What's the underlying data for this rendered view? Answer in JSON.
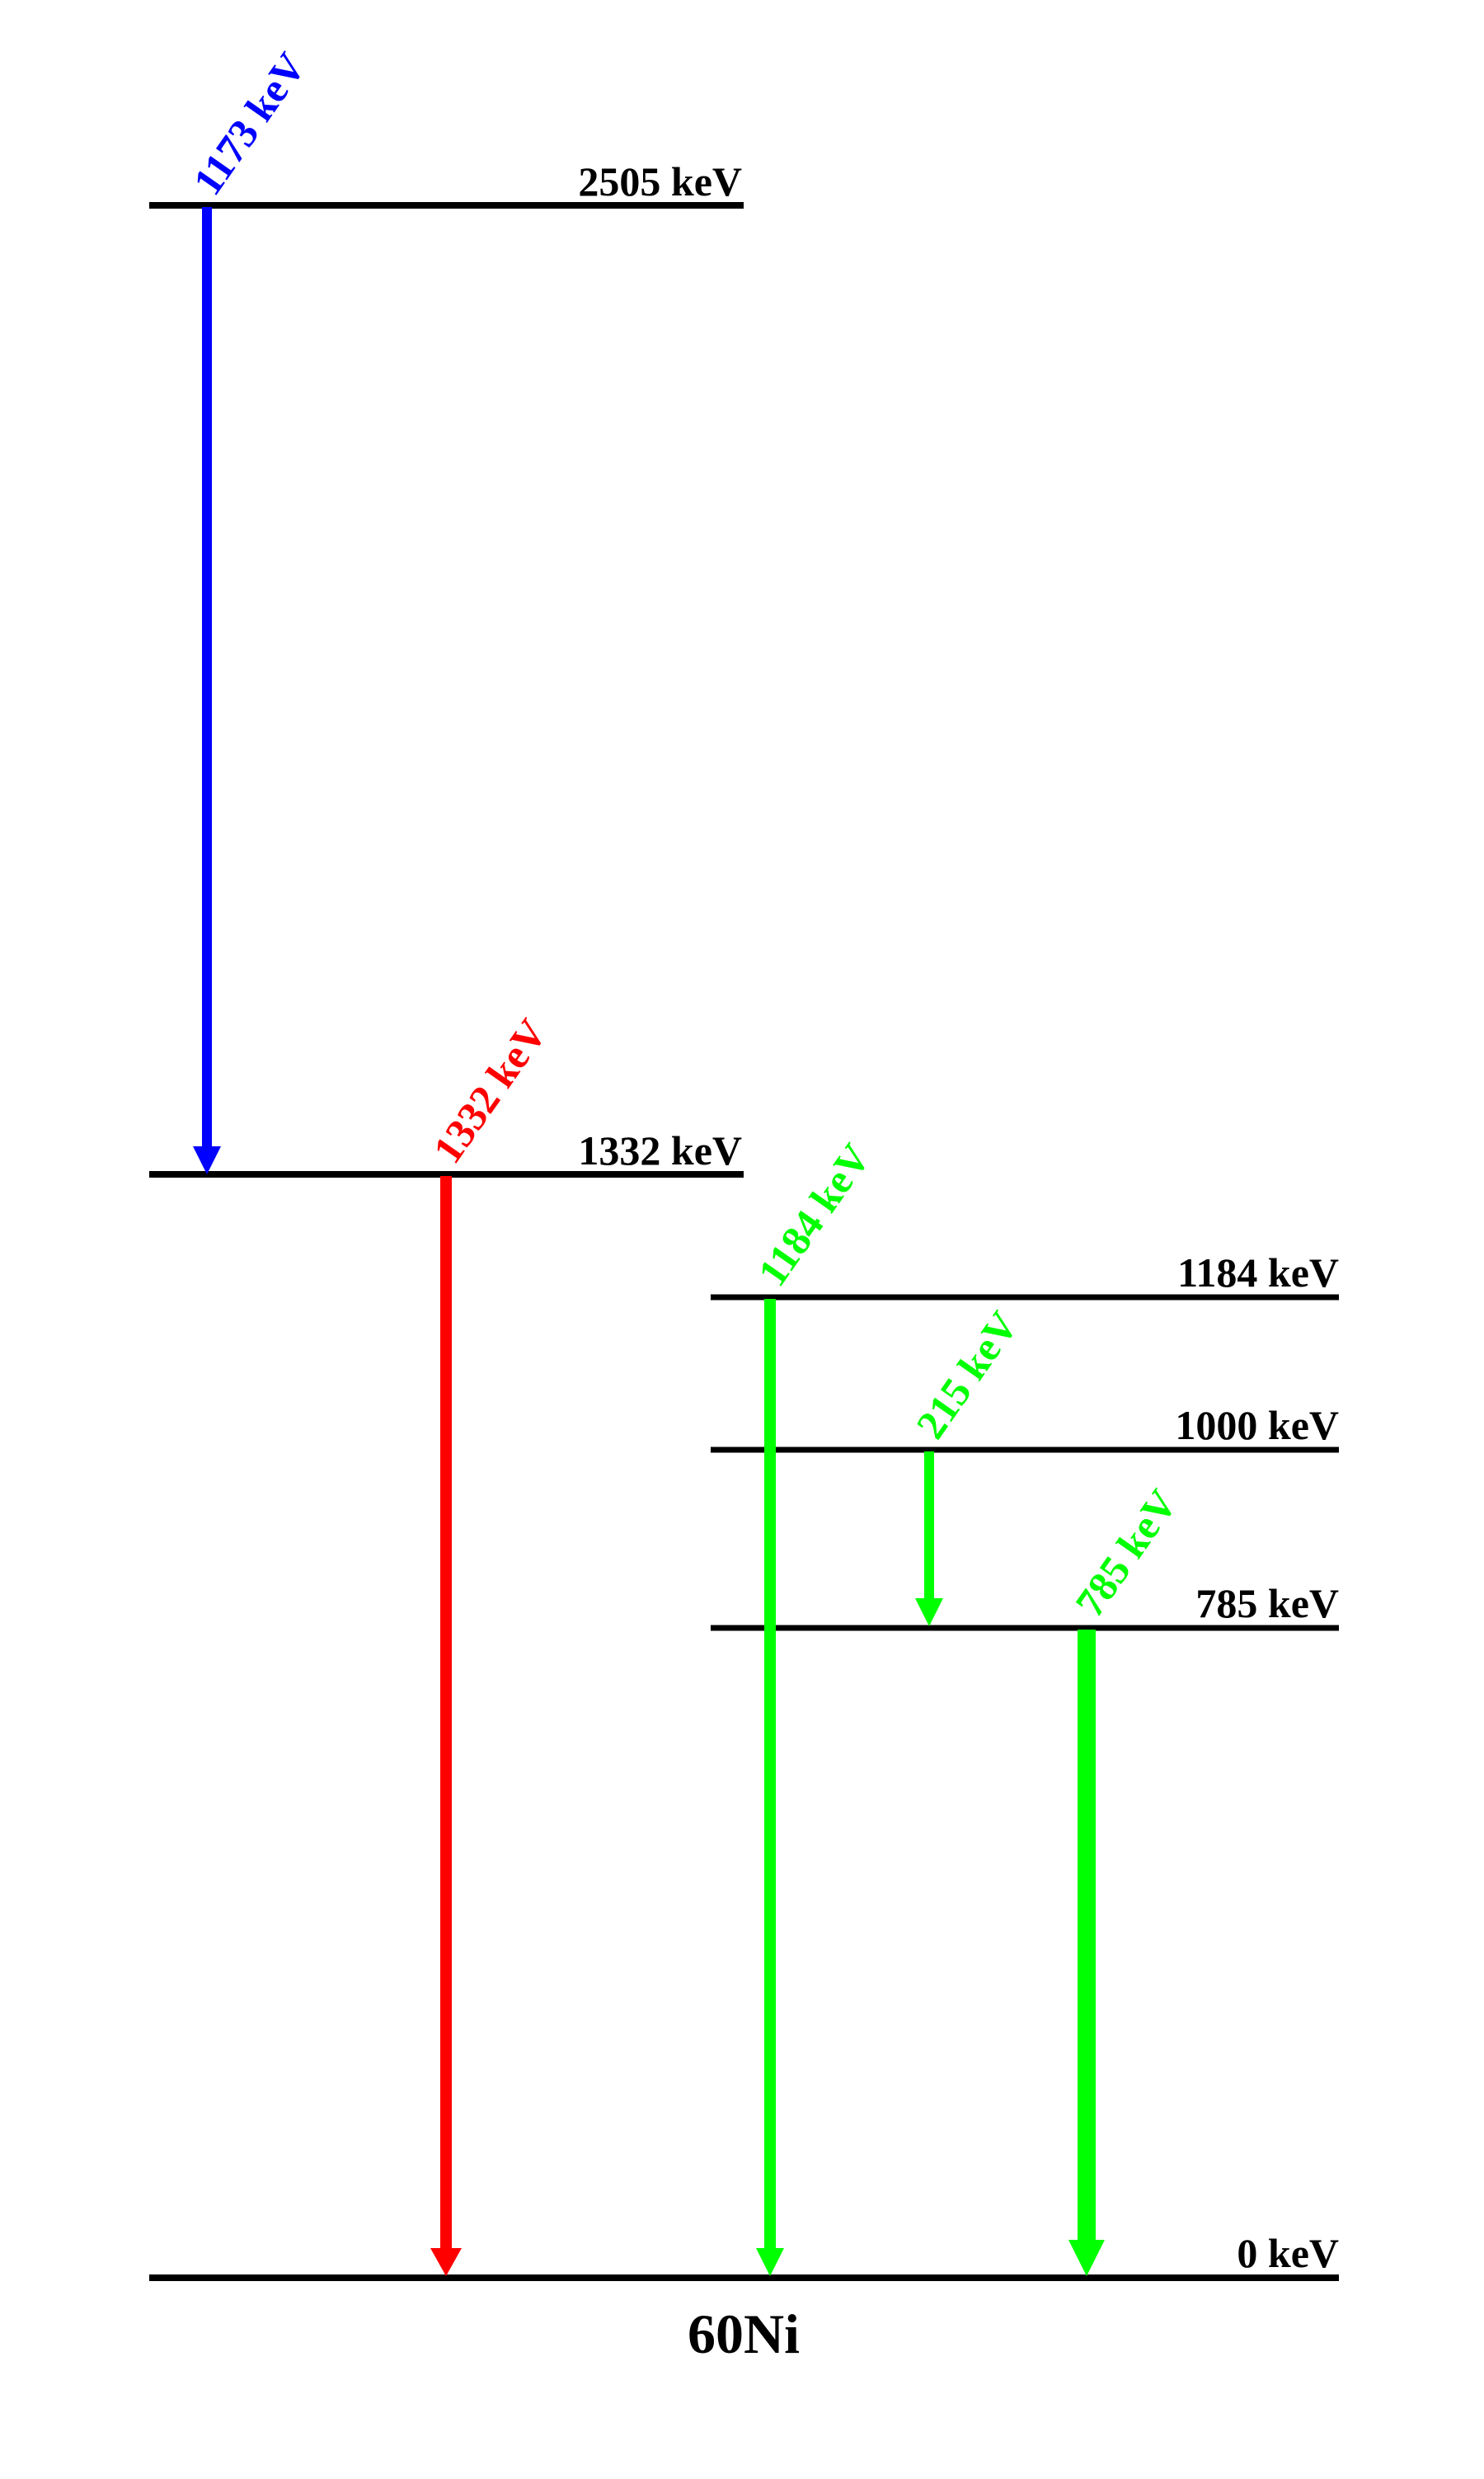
{
  "nucleus": "60Ni",
  "levels": [
    {
      "id": "level-2505",
      "energy_keV": 2505,
      "label": "2505 keV"
    },
    {
      "id": "level-1332",
      "energy_keV": 1332,
      "label": "1332 keV"
    },
    {
      "id": "level-1184",
      "energy_keV": 1184,
      "label": "1184 keV"
    },
    {
      "id": "level-1000",
      "energy_keV": 1000,
      "label": "1000 keV"
    },
    {
      "id": "level-785",
      "energy_keV": 785,
      "label": "785 keV"
    },
    {
      "id": "level-0",
      "energy_keV": 0,
      "label": "0 keV"
    }
  ],
  "transitions": [
    {
      "id": "gamma-1173",
      "energy_keV": 1173,
      "label": "1173 keV",
      "from_keV": 2505,
      "to_keV": 1332,
      "color": "#0000ff"
    },
    {
      "id": "gamma-1332",
      "energy_keV": 1332,
      "label": "1332 keV",
      "from_keV": 1332,
      "to_keV": 0,
      "color": "#ff0000"
    },
    {
      "id": "gamma-1184",
      "energy_keV": 1184,
      "label": "1184 keV",
      "from_keV": 1184,
      "to_keV": 0,
      "color": "#00ff00"
    },
    {
      "id": "gamma-215",
      "energy_keV": 215,
      "label": "215 keV",
      "from_keV": 1000,
      "to_keV": 785,
      "color": "#00ff00"
    },
    {
      "id": "gamma-785",
      "energy_keV": 785,
      "label": "785 keV",
      "from_keV": 785,
      "to_keV": 0,
      "color": "#00ff00"
    }
  ]
}
